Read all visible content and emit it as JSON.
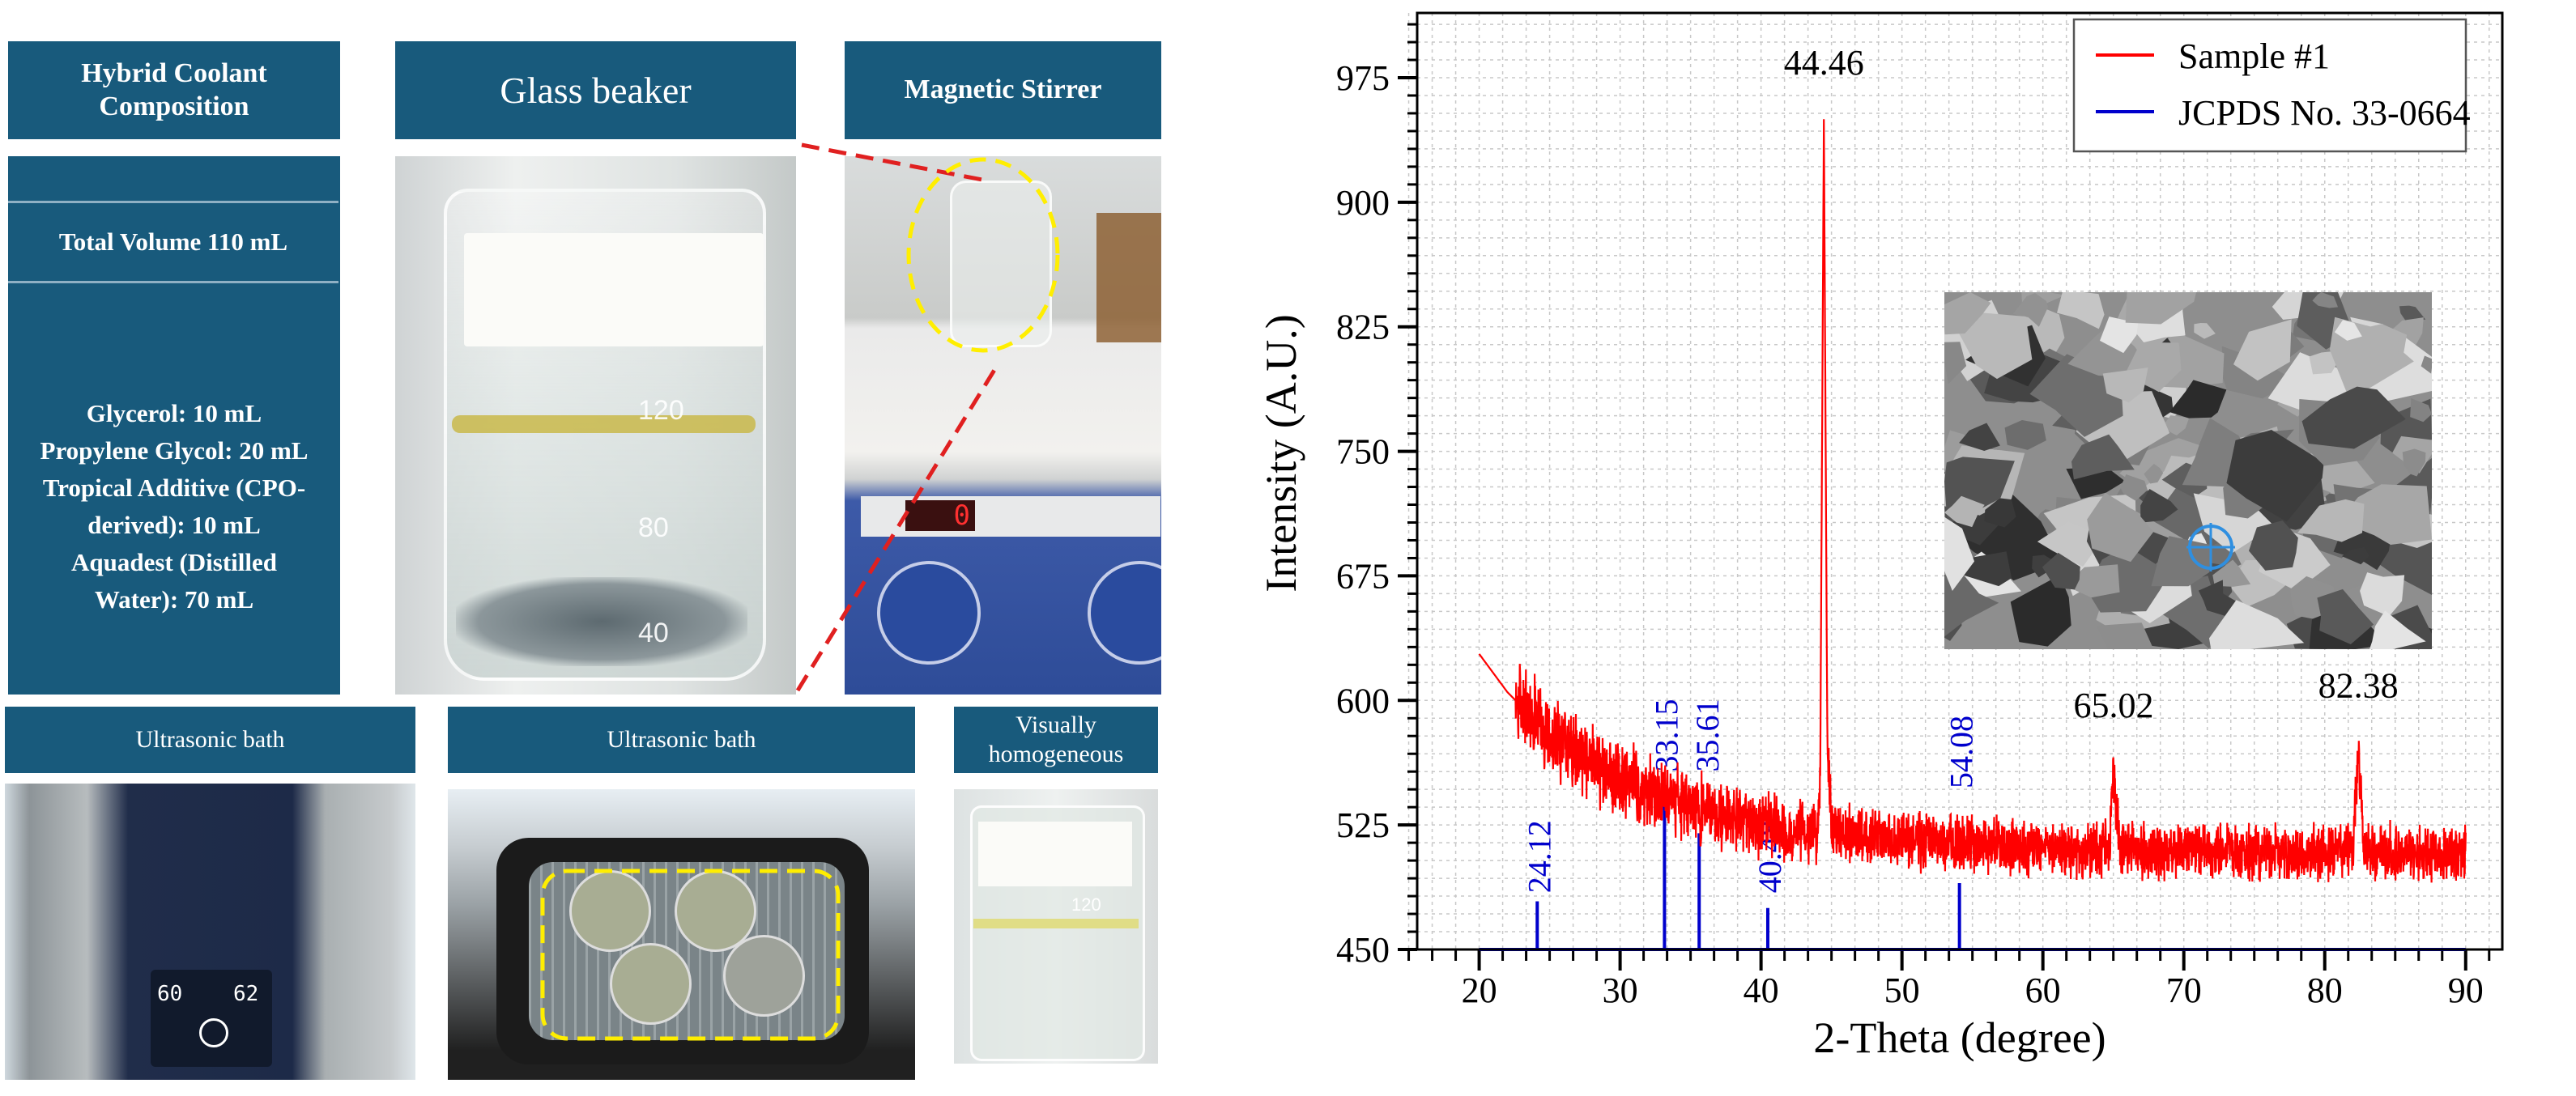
{
  "panels": {
    "composition": {
      "title": "Hybrid Coolant Composition",
      "total": "Total Volume 110 mL",
      "ingredients": [
        "Glycerol: 10 mL",
        "Propylene Glycol: 20 mL",
        "Tropical Additive (CPO-",
        "derived): 10 mL",
        "Aquadest (Distilled",
        "Water): 70 mL"
      ]
    },
    "beaker": {
      "title": "Glass beaker",
      "marks": [
        "120",
        "80",
        "40"
      ]
    },
    "stirrer": {
      "title": "Magnetic Stirrer",
      "display": "0"
    },
    "ultrasonic1": {
      "title": "Ultrasonic bath",
      "display_left": "60",
      "display_right": "62"
    },
    "ultrasonic2": {
      "title": "Ultrasonic bath"
    },
    "homogeneous": {
      "title": "Visually homogeneous",
      "mark": "120"
    }
  },
  "colors": {
    "header": "#185a7c",
    "sample": "#ff0000",
    "reference": "#0000cc",
    "highlight": "#ffee00",
    "connector": "#e02020"
  },
  "chart_data": {
    "type": "line",
    "xlabel": "2-Theta (degree)",
    "ylabel": "Intensity (A.U.)",
    "xlim": [
      15.6,
      92.6
    ],
    "ylim": [
      450,
      1014
    ],
    "xticks": [
      "20",
      "30",
      "40",
      "50",
      "60",
      "70",
      "80",
      "90"
    ],
    "yticks": [
      "450",
      "525",
      "600",
      "675",
      "750",
      "825",
      "900",
      "975"
    ],
    "grid": true,
    "legend": {
      "position": "top-right",
      "entries": [
        "Sample #1",
        "JCPDS No. 33-0664"
      ]
    },
    "series": [
      {
        "name": "Sample #1",
        "color": "#ff0000",
        "x": [
          20,
          22,
          24,
          26,
          28,
          30,
          32,
          34,
          36,
          38,
          40,
          42,
          44,
          44.2,
          44.46,
          44.7,
          45,
          46,
          50,
          55,
          60,
          64,
          64.7,
          65.02,
          65.4,
          66,
          70,
          75,
          80,
          82,
          82.38,
          82.8,
          85,
          90
        ],
        "y": [
          628,
          605,
          588,
          573,
          562,
          552,
          545,
          539,
          534,
          529,
          525,
          521,
          520,
          560,
          950,
          580,
          525,
          520,
          516,
          513,
          511,
          510,
          512,
          555,
          514,
          510,
          509,
          508,
          508,
          510,
          568,
          512,
          508,
          508
        ]
      },
      {
        "name": "JCPDS No. 33-0664",
        "color": "#0000cc",
        "type": "stick",
        "x": [
          24.12,
          33.15,
          35.61,
          40.48,
          54.08
        ],
        "y": [
          479,
          550,
          520,
          475,
          490
        ],
        "labels": [
          "24.12",
          "33.15",
          "35.61",
          "40.48",
          "54.08"
        ]
      }
    ],
    "annotations": [
      {
        "text": "44.46",
        "x": 44.46,
        "y": 975
      },
      {
        "text": "65.02",
        "x": 65.02,
        "y": 588
      },
      {
        "text": "82.38",
        "x": 82.38,
        "y": 600
      }
    ],
    "inset": "SEM micrograph"
  }
}
